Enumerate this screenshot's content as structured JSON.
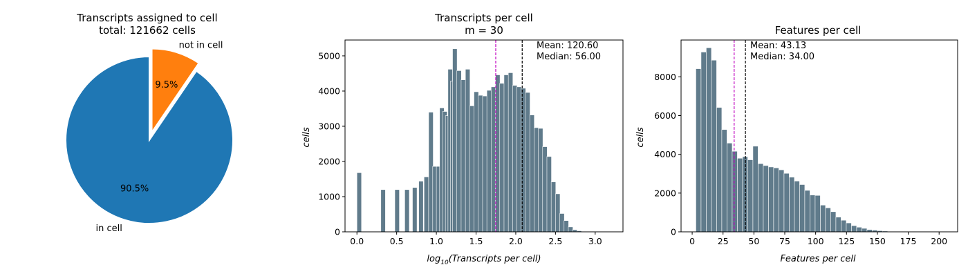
{
  "chart_data": [
    {
      "type": "pie",
      "title_line1": "Transcripts assigned to cell",
      "title_line2": "total: 121662 cells",
      "slices": [
        {
          "label": "in cell",
          "pct_label": "90.5%",
          "value": 90.5,
          "color": "#1f77b4"
        },
        {
          "label": "not in cell",
          "pct_label": "9.5%",
          "value": 9.5,
          "color": "#ff7f0e",
          "explode": true
        }
      ]
    },
    {
      "type": "bar",
      "title_line1": "Transcripts per cell",
      "title_line2": "m = 30",
      "xlabel_pre": "log",
      "xlabel_sub": "10",
      "xlabel_post": "(Transcripts per cell)",
      "ylabel": "cells",
      "xlim": [
        -0.15,
        3.35
      ],
      "ylim": [
        0,
        5450
      ],
      "xticks": [
        0.0,
        0.5,
        1.0,
        1.5,
        2.0,
        2.5,
        3.0
      ],
      "xtick_labels": [
        "0.0",
        "0.5",
        "1.0",
        "1.5",
        "2.0",
        "2.5",
        "3.0"
      ],
      "yticks": [
        0,
        1000,
        2000,
        3000,
        4000,
        5000
      ],
      "ytick_labels": [
        "0",
        "1000",
        "2000",
        "3000",
        "4000",
        "5000"
      ],
      "bin_width": 0.0575,
      "bins_x": [
        0.0,
        0.301,
        0.477,
        0.602,
        0.699,
        0.778,
        0.845,
        0.903,
        0.954,
        1.0,
        1.041,
        1.079,
        1.114,
        1.146,
        1.176,
        1.204,
        1.258,
        1.312,
        1.366,
        1.42,
        1.474,
        1.528,
        1.582,
        1.636,
        1.69,
        1.744,
        1.798,
        1.852,
        1.906,
        1.96,
        2.014,
        2.068,
        2.122,
        2.176,
        2.23,
        2.284,
        2.338,
        2.392,
        2.446,
        2.5,
        2.554,
        2.608,
        2.662,
        2.716,
        2.77,
        2.824,
        2.878,
        2.932,
        2.986,
        3.04,
        3.1
      ],
      "values": [
        1680,
        1200,
        1200,
        1200,
        1260,
        1440,
        1560,
        3400,
        1860,
        1860,
        3520,
        3420,
        3300,
        4620,
        4280,
        5200,
        4580,
        4320,
        4620,
        3580,
        3980,
        3880,
        3860,
        4020,
        4120,
        4460,
        4220,
        4460,
        4520,
        4160,
        4120,
        4080,
        3960,
        3320,
        2960,
        2940,
        2420,
        2140,
        1420,
        1080,
        520,
        320,
        140,
        60,
        30,
        0,
        0,
        0,
        0,
        0,
        0
      ],
      "median_x": 1.748,
      "mean_x": 2.081,
      "mean_label": "Mean: 120.60",
      "median_label": "Median: 56.00"
    },
    {
      "type": "bar",
      "title_line1": "Features per cell",
      "xlabel": "Features per cell",
      "ylabel": "cells",
      "xlim": [
        -9,
        215
      ],
      "ylim": [
        0,
        9900
      ],
      "xticks": [
        0,
        25,
        50,
        75,
        100,
        125,
        150,
        175,
        200
      ],
      "xtick_labels": [
        "0",
        "25",
        "50",
        "75",
        "100",
        "125",
        "150",
        "175",
        "200"
      ],
      "yticks": [
        0,
        2000,
        4000,
        6000,
        8000
      ],
      "ytick_labels": [
        "0",
        "2000",
        "4000",
        "6000",
        "8000"
      ],
      "bin_width": 4.2,
      "bins_x": [
        3.0,
        7.2,
        11.4,
        15.6,
        19.8,
        24.0,
        28.2,
        32.4,
        36.6,
        40.8,
        45.0,
        49.2,
        53.4,
        57.6,
        61.8,
        66.0,
        70.2,
        74.4,
        78.6,
        82.8,
        87.0,
        91.2,
        95.4,
        99.6,
        103.8,
        108.0,
        112.2,
        116.4,
        120.6,
        124.8,
        129.0,
        133.2,
        137.4,
        141.6,
        145.8,
        150.0,
        154.2,
        158.4,
        162.6,
        166.8,
        171.0
      ],
      "values": [
        8420,
        9280,
        9500,
        8860,
        6420,
        5280,
        4580,
        4160,
        3800,
        3880,
        3720,
        4420,
        3520,
        3420,
        3350,
        3300,
        3200,
        3020,
        2820,
        2620,
        2440,
        2140,
        1900,
        1880,
        1380,
        1240,
        1040,
        760,
        600,
        460,
        320,
        240,
        180,
        120,
        90,
        60,
        40,
        25,
        15,
        10,
        5
      ],
      "median_x": 34.0,
      "mean_x": 43.13,
      "mean_label": "Mean: 43.13",
      "median_label": "Median: 34.00"
    }
  ]
}
